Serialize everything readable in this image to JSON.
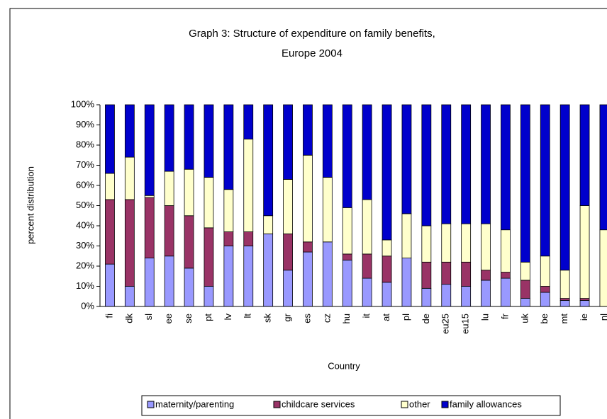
{
  "chart_data": {
    "type": "stacked_bar",
    "title": [
      "Graph 3: Structure of expenditure on family benefits,",
      "Europe 2004"
    ],
    "x_label": "Country",
    "y_label": "percent distribution",
    "categories": [
      "fi",
      "dk",
      "sl",
      "ee",
      "se",
      "pt",
      "lv",
      "lt",
      "sk",
      "gr",
      "es",
      "cz",
      "hu",
      "it",
      "at",
      "pl",
      "de",
      "eu25",
      "eu15",
      "lu",
      "fr",
      "uk",
      "be",
      "mt",
      "ie",
      "nl"
    ],
    "series": [
      {
        "name": "maternity/parenting",
        "color": "#9999ff",
        "values": [
          21,
          10,
          24,
          25,
          19,
          10,
          30,
          30,
          36,
          18,
          27,
          32,
          23,
          14,
          12,
          24,
          9,
          11,
          10,
          13,
          14,
          4,
          7,
          3,
          3,
          0
        ]
      },
      {
        "name": "childcare services",
        "color": "#993366",
        "values": [
          32,
          43,
          30,
          25,
          26,
          29,
          7,
          7,
          0,
          18,
          5,
          0,
          3,
          12,
          13,
          0,
          13,
          11,
          12,
          5,
          3,
          9,
          3,
          1,
          1,
          0
        ]
      },
      {
        "name": "other",
        "color": "#ffffcc",
        "values": [
          13,
          21,
          1,
          17,
          23,
          25,
          21,
          46,
          9,
          27,
          43,
          32,
          23,
          27,
          8,
          22,
          18,
          19,
          19,
          23,
          21,
          9,
          15,
          14,
          46,
          38
        ]
      },
      {
        "name": "family allowances",
        "color": "#0000cc",
        "values": [
          34,
          26,
          45,
          33,
          32,
          36,
          42,
          17,
          55,
          37,
          25,
          36,
          51,
          47,
          67,
          54,
          60,
          59,
          59,
          59,
          62,
          78,
          75,
          82,
          50,
          62
        ]
      }
    ],
    "ylim": [
      0,
      100
    ],
    "yticks": [
      {
        "value": 0,
        "label": "0%"
      },
      {
        "value": 10,
        "label": "10%"
      },
      {
        "value": 20,
        "label": "20%"
      },
      {
        "value": 30,
        "label": "30%"
      },
      {
        "value": 40,
        "label": "40%"
      },
      {
        "value": 50,
        "label": "50%"
      },
      {
        "value": 60,
        "label": "60%"
      },
      {
        "value": 70,
        "label": "70%"
      },
      {
        "value": 80,
        "label": "80%"
      },
      {
        "value": 90,
        "label": "90%"
      },
      {
        "value": 100,
        "label": "100%"
      }
    ],
    "grid": false,
    "legend": "bottom"
  }
}
